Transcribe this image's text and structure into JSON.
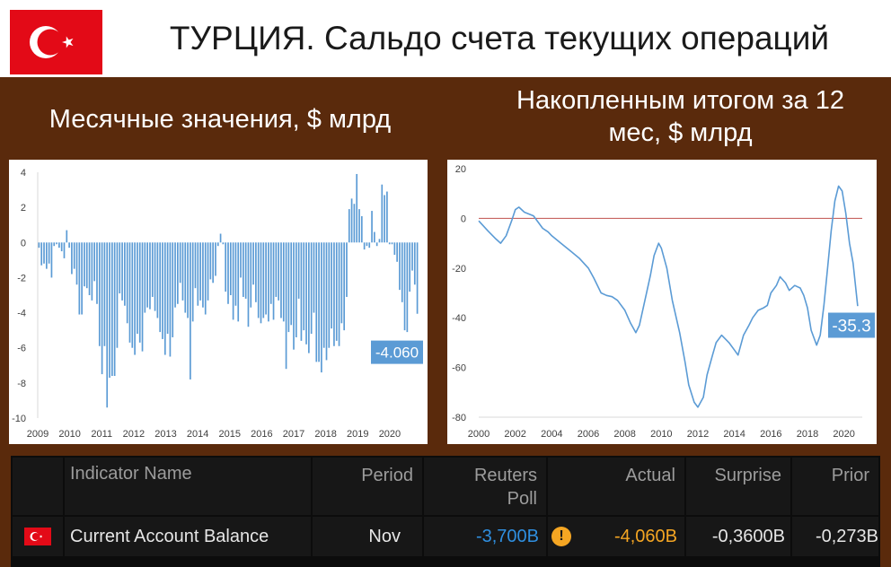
{
  "header": {
    "title": "ТУРЦИЯ. Сальдо счета текущих операций",
    "left_subtitle": "Месячные значения, $ млрд",
    "right_subtitle_line1": "Накопленным итогом за 12",
    "right_subtitle_line2": "мес, $ млрд"
  },
  "colors": {
    "background": "#5a2a0c",
    "bar": "#5b9bd5",
    "line": "#5b9bd5",
    "zero_line": "#c0504d",
    "flag_red": "#e30a17",
    "label_box": "#5b9bd5",
    "poll_blue": "#2f8fe0",
    "actual_orange": "#f5a623"
  },
  "chart_data": [
    {
      "type": "bar",
      "x_ticks": [
        "2009",
        "2010",
        "2011",
        "2012",
        "2013",
        "2014",
        "2015",
        "2016",
        "2017",
        "2018",
        "2019",
        "2020"
      ],
      "y_ticks": [
        "4",
        "2",
        "0",
        "-2",
        "-4",
        "-6",
        "-8",
        "-10"
      ],
      "ylim": [
        -10,
        4
      ],
      "x_start": 2009.0,
      "x_end": 2020.9,
      "annotation": "-4.060",
      "values": [
        -0.3,
        -1.3,
        -1.2,
        -1.5,
        -1.2,
        -2.0,
        -0.2,
        -0.1,
        -0.3,
        -0.5,
        -0.9,
        0.7,
        -0.3,
        -1.8,
        -1.5,
        -2.4,
        -4.1,
        -4.1,
        -2.5,
        -2.6,
        -3.0,
        -3.3,
        -2.2,
        -3.5,
        -5.9,
        -7.5,
        -5.9,
        -9.4,
        -7.7,
        -7.6,
        -7.6,
        -6.0,
        -2.9,
        -3.3,
        -3.6,
        -4.6,
        -5.7,
        -6.0,
        -6.4,
        -5.2,
        -5.7,
        -6.2,
        -4.0,
        -3.7,
        -3.8,
        -3.1,
        -3.9,
        -4.3,
        -5.1,
        -5.5,
        -6.4,
        -5.2,
        -6.5,
        -5.4,
        -3.7,
        -3.5,
        -2.3,
        -3.3,
        -4.0,
        -4.3,
        -7.8,
        -4.5,
        -2.6,
        -3.6,
        -3.3,
        -3.7,
        -4.1,
        -3.3,
        -2.1,
        -2.3,
        -1.9,
        -0.2,
        0.5,
        -0.1,
        -2.8,
        -3.5,
        -3.0,
        -4.4,
        -3.6,
        -4.5,
        -2.0,
        -3.1,
        -3.2,
        -4.8,
        -3.7,
        -2.4,
        -3.4,
        -4.3,
        -4.6,
        -4.3,
        -4.1,
        -4.5,
        -3.5,
        -4.4,
        -3.1,
        -3.3,
        -4.3,
        -4.5,
        -7.2,
        -5.1,
        -4.7,
        -6.1,
        -5.4,
        -3.2,
        -5.6,
        -5.0,
        -5.8,
        -6.3,
        -5.2,
        -4.0,
        -6.8,
        -6.8,
        -7.4,
        -6.0,
        -6.7,
        -6.0,
        -4.9,
        -5.9,
        -5.6,
        -5.9,
        -4.6,
        -5.0,
        -3.1,
        1.9,
        2.5,
        2.2,
        3.9,
        1.9,
        1.5,
        -0.4,
        -0.2,
        -0.3,
        1.8,
        0.6,
        -0.2,
        0.2,
        3.3,
        2.7,
        2.9,
        -0.1,
        -0.1,
        -0.7,
        -1.1,
        -2.7,
        -3.4,
        -5.0,
        -5.1,
        -2.8,
        -1.6,
        -2.4,
        -4.06
      ]
    },
    {
      "type": "line",
      "x_ticks": [
        "2000",
        "2002",
        "2004",
        "2006",
        "2008",
        "2010",
        "2012",
        "2014",
        "2016",
        "2018",
        "2020"
      ],
      "y_ticks": [
        "20",
        "0",
        "-20",
        "-40",
        "-60",
        "-80"
      ],
      "xlim": [
        2000,
        2021
      ],
      "ylim": [
        -80,
        20
      ],
      "annotation": "-35.3",
      "points": [
        [
          2000.0,
          -1.0
        ],
        [
          2000.5,
          -5.0
        ],
        [
          2000.9,
          -8.0
        ],
        [
          2001.2,
          -10.0
        ],
        [
          2001.5,
          -7.0
        ],
        [
          2001.8,
          -1.0
        ],
        [
          2002.0,
          3.5
        ],
        [
          2002.2,
          4.5
        ],
        [
          2002.5,
          2.5
        ],
        [
          2003.0,
          1.0
        ],
        [
          2003.5,
          -4.0
        ],
        [
          2003.8,
          -5.5
        ],
        [
          2004.0,
          -7.0
        ],
        [
          2004.5,
          -10.0
        ],
        [
          2005.0,
          -13.0
        ],
        [
          2005.5,
          -16.0
        ],
        [
          2006.0,
          -20.0
        ],
        [
          2006.3,
          -24.0
        ],
        [
          2006.7,
          -30.0
        ],
        [
          2007.0,
          -31.0
        ],
        [
          2007.3,
          -31.5
        ],
        [
          2007.6,
          -33.0
        ],
        [
          2008.0,
          -37.0
        ],
        [
          2008.3,
          -42.0
        ],
        [
          2008.6,
          -46.0
        ],
        [
          2008.8,
          -43.0
        ],
        [
          2009.1,
          -33.0
        ],
        [
          2009.4,
          -23.0
        ],
        [
          2009.6,
          -15.0
        ],
        [
          2009.85,
          -10.0
        ],
        [
          2010.0,
          -12.0
        ],
        [
          2010.3,
          -20.0
        ],
        [
          2010.6,
          -33.0
        ],
        [
          2011.0,
          -46.0
        ],
        [
          2011.3,
          -58.0
        ],
        [
          2011.5,
          -67.0
        ],
        [
          2011.8,
          -74.0
        ],
        [
          2012.0,
          -76.0
        ],
        [
          2012.3,
          -72.0
        ],
        [
          2012.5,
          -63.0
        ],
        [
          2012.8,
          -55.0
        ],
        [
          2013.0,
          -50.0
        ],
        [
          2013.3,
          -47.0
        ],
        [
          2013.7,
          -50.0
        ],
        [
          2014.0,
          -53.0
        ],
        [
          2014.2,
          -55.0
        ],
        [
          2014.5,
          -47.0
        ],
        [
          2014.8,
          -43.0
        ],
        [
          2015.0,
          -40.0
        ],
        [
          2015.3,
          -37.0
        ],
        [
          2015.6,
          -36.0
        ],
        [
          2015.8,
          -35.0
        ],
        [
          2016.0,
          -30.0
        ],
        [
          2016.3,
          -27.0
        ],
        [
          2016.5,
          -23.5
        ],
        [
          2016.8,
          -26.0
        ],
        [
          2017.0,
          -29.0
        ],
        [
          2017.3,
          -27.0
        ],
        [
          2017.6,
          -28.0
        ],
        [
          2017.8,
          -31.0
        ],
        [
          2018.0,
          -36.0
        ],
        [
          2018.2,
          -45.0
        ],
        [
          2018.5,
          -51.0
        ],
        [
          2018.7,
          -47.0
        ],
        [
          2018.9,
          -35.0
        ],
        [
          2019.1,
          -20.0
        ],
        [
          2019.3,
          -5.0
        ],
        [
          2019.5,
          7.0
        ],
        [
          2019.7,
          13.0
        ],
        [
          2019.9,
          11.0
        ],
        [
          2020.1,
          2.0
        ],
        [
          2020.3,
          -10.0
        ],
        [
          2020.5,
          -18.0
        ],
        [
          2020.75,
          -35.3
        ]
      ]
    }
  ],
  "table": {
    "headers": {
      "indicator": "Indicator Name",
      "period": "Period",
      "poll_line1": "Reuters",
      "poll_line2": "Poll",
      "actual": "Actual",
      "surprise": "Surprise",
      "prior": "Prior"
    },
    "row": {
      "indicator": "Current Account Balance",
      "period": "Nov",
      "poll": "-3,700B",
      "alert": "!",
      "actual": "-4,060B",
      "surprise": "-0,3600B",
      "prior": "-0,273B"
    }
  }
}
